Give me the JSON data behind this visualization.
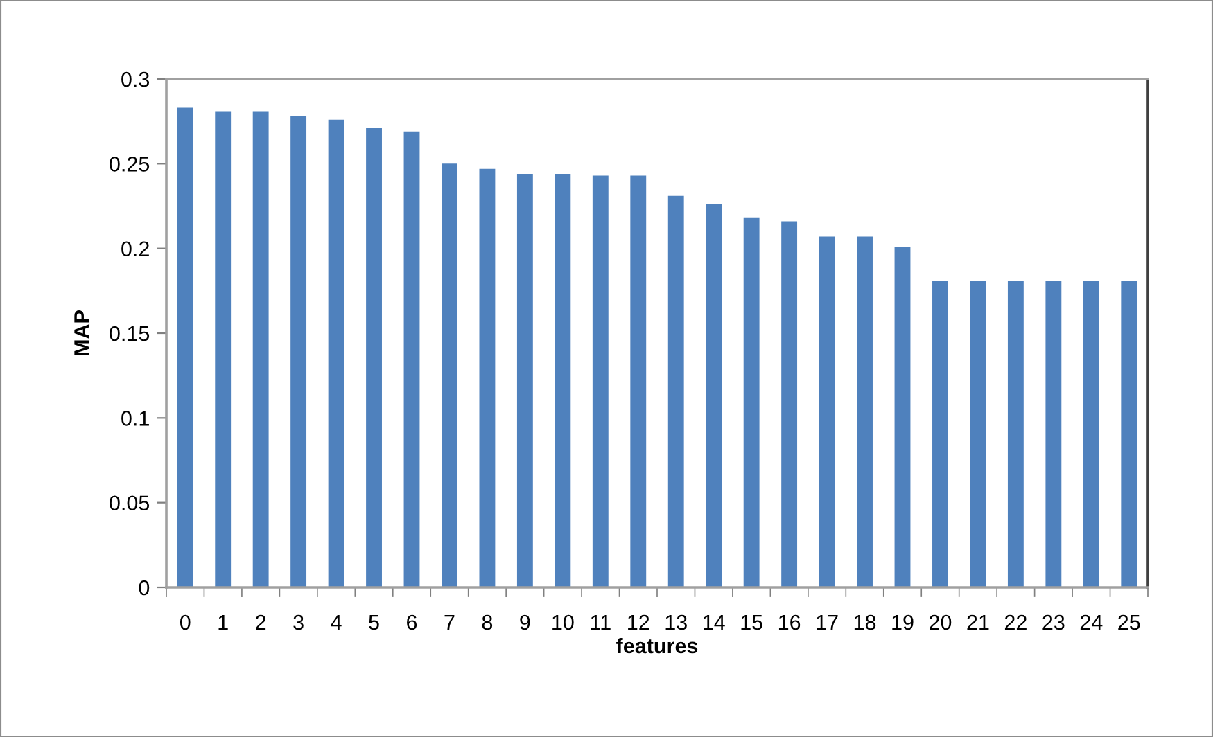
{
  "chart_data": {
    "type": "bar",
    "xlabel": "features",
    "ylabel": "MAP",
    "categories": [
      "0",
      "1",
      "2",
      "3",
      "4",
      "5",
      "6",
      "7",
      "8",
      "9",
      "10",
      "11",
      "12",
      "13",
      "14",
      "15",
      "16",
      "17",
      "18",
      "19",
      "20",
      "21",
      "22",
      "23",
      "24",
      "25"
    ],
    "values": [
      0.283,
      0.281,
      0.281,
      0.278,
      0.276,
      0.271,
      0.269,
      0.25,
      0.247,
      0.244,
      0.244,
      0.243,
      0.243,
      0.231,
      0.226,
      0.218,
      0.216,
      0.207,
      0.207,
      0.201,
      0.181,
      0.181,
      0.181,
      0.181,
      0.181,
      0.181
    ],
    "color": "#4f81bd",
    "ylim": [
      0,
      0.3
    ],
    "yticks": [
      0,
      0.05,
      0.1,
      0.15,
      0.2,
      0.25,
      0.3
    ],
    "grid": false,
    "legend": false
  }
}
